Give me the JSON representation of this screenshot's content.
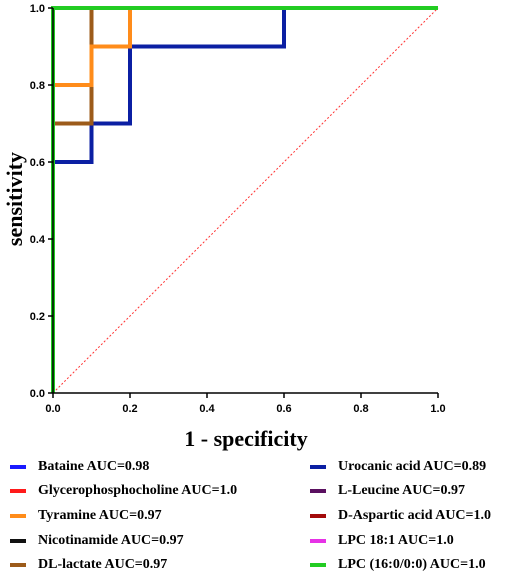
{
  "chart_data": {
    "type": "line",
    "xlabel": "1 - specificity",
    "ylabel": "sensitivity",
    "xlim": [
      0,
      1
    ],
    "ylim": [
      0,
      1
    ],
    "xticks": [
      "0.0",
      "0.2",
      "0.4",
      "0.6",
      "0.8",
      "1.0"
    ],
    "yticks": [
      "0.0",
      "0.2",
      "0.4",
      "0.6",
      "0.8",
      "1.0"
    ],
    "grid": false,
    "legend_position": "bottom",
    "reference_line": true,
    "series": [
      {
        "name": "Bataine  AUC=0.98",
        "color": "#1a1aff",
        "x": [
          0,
          0,
          0.1,
          0.1,
          1
        ],
        "y": [
          0,
          0.8,
          0.8,
          1.0,
          1.0
        ]
      },
      {
        "name": "Urocanic acid  AUC=0.89",
        "color": "#0b1fa3",
        "x": [
          0,
          0,
          0.1,
          0.1,
          0.2,
          0.2,
          0.6,
          0.6,
          1
        ],
        "y": [
          0,
          0.6,
          0.6,
          0.7,
          0.7,
          0.9,
          0.9,
          1.0,
          1.0
        ]
      },
      {
        "name": "Glycerophosphocholine  AUC=1.0",
        "color": "#ff1a1a",
        "x": [
          0,
          0,
          1
        ],
        "y": [
          0,
          1.0,
          1.0
        ]
      },
      {
        "name": "L-Leucine  AUC=0.97",
        "color": "#5a1060",
        "x": [
          0,
          0,
          0.1,
          0.1,
          1
        ],
        "y": [
          0,
          0.7,
          0.7,
          1.0,
          1.0
        ]
      },
      {
        "name": "Tyramine  AUC=0.97",
        "color": "#ff8c1a",
        "x": [
          0,
          0,
          0.1,
          0.1,
          0.2,
          0.2,
          1
        ],
        "y": [
          0,
          0.8,
          0.8,
          0.9,
          0.9,
          1.0,
          1.0
        ]
      },
      {
        "name": "D-Aspartic acid  AUC=1.0",
        "color": "#a30a0a",
        "x": [
          0,
          0,
          1
        ],
        "y": [
          0,
          1.0,
          1.0
        ]
      },
      {
        "name": "Nicotinamide  AUC=0.97",
        "color": "#111111",
        "x": [
          0,
          0,
          0.1,
          0.1,
          1
        ],
        "y": [
          0,
          0.7,
          0.7,
          1.0,
          1.0
        ]
      },
      {
        "name": "LPC 18:1  AUC=1.0",
        "color": "#e632e6",
        "x": [
          0,
          0,
          1
        ],
        "y": [
          0,
          1.0,
          1.0
        ]
      },
      {
        "name": "DL-lactate  AUC=0.97",
        "color": "#9c5b1a",
        "x": [
          0,
          0,
          0.1,
          0.1,
          1
        ],
        "y": [
          0,
          0.7,
          0.7,
          1.0,
          1.0
        ]
      },
      {
        "name": "LPC (16:0/0:0)  AUC=1.0",
        "color": "#22cc22",
        "x": [
          0,
          0,
          1
        ],
        "y": [
          0,
          1.0,
          1.0
        ]
      }
    ]
  }
}
